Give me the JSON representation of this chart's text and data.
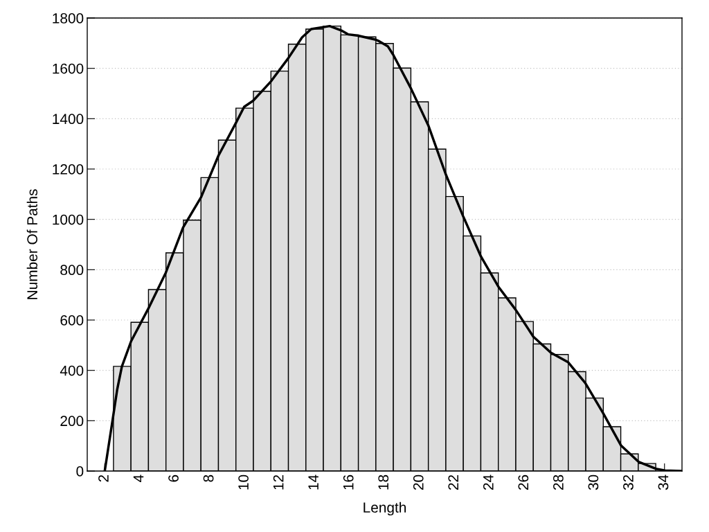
{
  "chart_data": {
    "type": "histogram",
    "xlabel": "Length",
    "ylabel": "Number Of Paths",
    "bins": [
      2.5,
      3.5,
      4.5,
      5.5,
      6.5,
      7.5,
      8.5,
      9.5,
      10.5,
      11.5,
      12.5,
      13.5,
      14.5,
      15.5,
      16.5,
      17.5,
      18.5,
      19.5,
      20.5,
      21.5,
      22.5,
      23.5,
      24.5,
      25.5,
      26.5,
      27.5,
      28.5,
      29.5,
      30.5,
      31.5,
      32.5,
      33.5,
      34.5
    ],
    "values": [
      416,
      591,
      721,
      867,
      997,
      1166,
      1315,
      1442,
      1509,
      1589,
      1696,
      1756,
      1768,
      1733,
      1725,
      1699,
      1601,
      1467,
      1279,
      1091,
      934,
      787,
      688,
      594,
      505,
      463,
      395,
      290,
      176,
      68,
      30,
      null
    ],
    "color": "#dedede",
    "series": [
      {
        "type": "line",
        "color": "#000000",
        "x": [
          2,
          2.45,
          2.71,
          2.98,
          3.51,
          4.49,
          5.49,
          6.48,
          7.51,
          8.5,
          9.49,
          9.97,
          10.48,
          11.5,
          12.49,
          13.28,
          13.8,
          14.86,
          15.51,
          15.91,
          16.49,
          17.49,
          17.65,
          18.19,
          18.49,
          19.5,
          20.5,
          21.49,
          22.48,
          23.51,
          24.5,
          25.49,
          26.5,
          27.51,
          28.48,
          29.47,
          30.49,
          31.52,
          32.51,
          33.5,
          34.03,
          35
        ],
        "values": [
          0,
          203,
          323,
          415,
          516,
          645,
          788,
          968,
          1088,
          1253,
          1382,
          1447,
          1471,
          1548,
          1640,
          1723,
          1756,
          1768,
          1751,
          1735,
          1730,
          1714,
          1709,
          1687,
          1654,
          1521,
          1373,
          1180,
          1014,
          852,
          733,
          641,
          534,
          470,
          433,
          350,
          230,
          101,
          37,
          9,
          2,
          0
        ]
      }
    ],
    "xlim": [
      1,
      35
    ],
    "xticks": [
      2,
      4,
      6,
      8,
      10,
      12,
      14,
      16,
      18,
      20,
      22,
      24,
      26,
      28,
      30,
      32,
      34
    ],
    "ylim": [
      0,
      1800
    ],
    "yticks": [
      0,
      200,
      400,
      600,
      800,
      1000,
      1200,
      1400,
      1600,
      1800
    ],
    "grid": "y",
    "legend": false
  }
}
